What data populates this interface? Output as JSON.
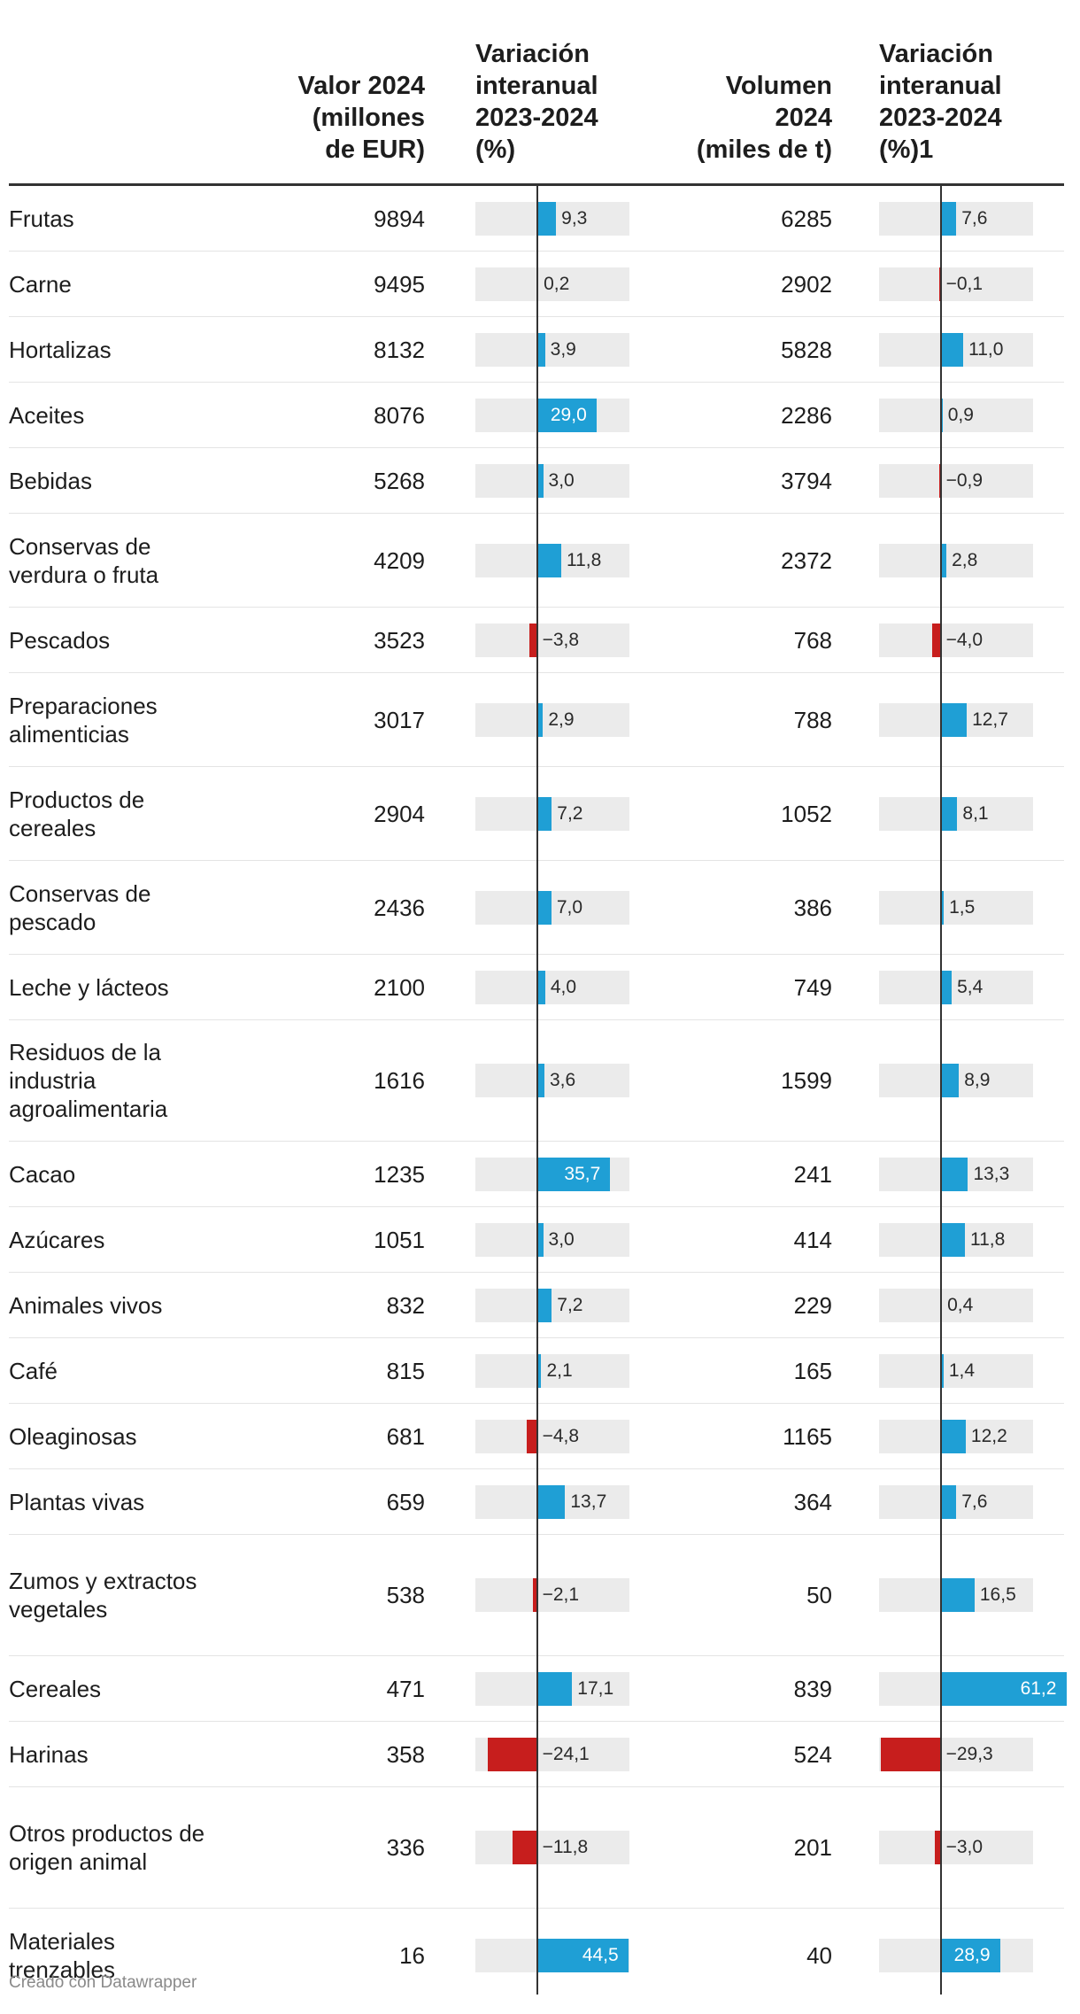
{
  "headers": {
    "valor": [
      "Valor 2024",
      "(millones",
      "de EUR)"
    ],
    "var_valor": [
      "Variación",
      "interanual",
      "2023-2024",
      "(%)"
    ],
    "volumen": [
      "Volumen",
      "2024",
      "(miles de t)"
    ],
    "var_volumen": [
      "Variación",
      "interanual",
      "2023-2024",
      "(%)1"
    ]
  },
  "colors": {
    "positive": "#1f9fd5",
    "negative": "#c71e1d",
    "track": "#ebebeb"
  },
  "chart_data": {
    "type": "table",
    "columns": [
      "Valor 2024 (millones de EUR)",
      "Variación interanual 2023-2024 (%)",
      "Volumen 2024 (miles de t)",
      "Variación interanual 2023-2024 (%)1"
    ],
    "bar_range": [
      -30,
      45
    ],
    "rows": [
      {
        "category": "Frutas",
        "valor": 9894,
        "var_valor": 9.3,
        "var_valor_label": "9,3",
        "volumen": 6285,
        "var_volumen": 7.6,
        "var_volumen_label": "7,6"
      },
      {
        "category": "Carne",
        "valor": 9495,
        "var_valor": 0.2,
        "var_valor_label": "0,2",
        "volumen": 2902,
        "var_volumen": -0.1,
        "var_volumen_label": "−0,1"
      },
      {
        "category": "Hortalizas",
        "valor": 8132,
        "var_valor": 3.9,
        "var_valor_label": "3,9",
        "volumen": 5828,
        "var_volumen": 11.0,
        "var_volumen_label": "11,0"
      },
      {
        "category": "Aceites",
        "valor": 8076,
        "var_valor": 29.0,
        "var_valor_label": "29,0",
        "volumen": 2286,
        "var_volumen": 0.9,
        "var_volumen_label": "0,9"
      },
      {
        "category": "Bebidas",
        "valor": 5268,
        "var_valor": 3.0,
        "var_valor_label": "3,0",
        "volumen": 3794,
        "var_volumen": -0.9,
        "var_volumen_label": "−0,9"
      },
      {
        "category": "Conservas de verdura o fruta",
        "valor": 4209,
        "var_valor": 11.8,
        "var_valor_label": "11,8",
        "volumen": 2372,
        "var_volumen": 2.8,
        "var_volumen_label": "2,8"
      },
      {
        "category": "Pescados",
        "valor": 3523,
        "var_valor": -3.8,
        "var_valor_label": "−3,8",
        "volumen": 768,
        "var_volumen": -4.0,
        "var_volumen_label": "−4,0"
      },
      {
        "category": "Preparaciones alimenticias",
        "valor": 3017,
        "var_valor": 2.9,
        "var_valor_label": "2,9",
        "volumen": 788,
        "var_volumen": 12.7,
        "var_volumen_label": "12,7"
      },
      {
        "category": "Productos de cereales",
        "valor": 2904,
        "var_valor": 7.2,
        "var_valor_label": "7,2",
        "volumen": 1052,
        "var_volumen": 8.1,
        "var_volumen_label": "8,1"
      },
      {
        "category": "Conservas de pescado",
        "valor": 2436,
        "var_valor": 7.0,
        "var_valor_label": "7,0",
        "volumen": 386,
        "var_volumen": 1.5,
        "var_volumen_label": "1,5"
      },
      {
        "category": "Leche y lácteos",
        "valor": 2100,
        "var_valor": 4.0,
        "var_valor_label": "4,0",
        "volumen": 749,
        "var_volumen": 5.4,
        "var_volumen_label": "5,4"
      },
      {
        "category": "Residuos de la industria agroalimentaria",
        "valor": 1616,
        "var_valor": 3.6,
        "var_valor_label": "3,6",
        "volumen": 1599,
        "var_volumen": 8.9,
        "var_volumen_label": "8,9"
      },
      {
        "category": "Cacao",
        "valor": 1235,
        "var_valor": 35.7,
        "var_valor_label": "35,7",
        "volumen": 241,
        "var_volumen": 13.3,
        "var_volumen_label": "13,3"
      },
      {
        "category": "Azúcares",
        "valor": 1051,
        "var_valor": 3.0,
        "var_valor_label": "3,0",
        "volumen": 414,
        "var_volumen": 11.8,
        "var_volumen_label": "11,8"
      },
      {
        "category": "Animales vivos",
        "valor": 832,
        "var_valor": 7.2,
        "var_valor_label": "7,2",
        "volumen": 229,
        "var_volumen": 0.4,
        "var_volumen_label": "0,4"
      },
      {
        "category": "Café",
        "valor": 815,
        "var_valor": 2.1,
        "var_valor_label": "2,1",
        "volumen": 165,
        "var_volumen": 1.4,
        "var_volumen_label": "1,4"
      },
      {
        "category": "Oleaginosas",
        "valor": 681,
        "var_valor": -4.8,
        "var_valor_label": "−4,8",
        "volumen": 1165,
        "var_volumen": 12.2,
        "var_volumen_label": "12,2"
      },
      {
        "category": "Plantas vivas",
        "valor": 659,
        "var_valor": 13.7,
        "var_valor_label": "13,7",
        "volumen": 364,
        "var_volumen": 7.6,
        "var_volumen_label": "7,6"
      },
      {
        "category": "Zumos y extractos vegetales",
        "valor": 538,
        "var_valor": -2.1,
        "var_valor_label": "−2,1",
        "volumen": 50,
        "var_volumen": 16.5,
        "var_volumen_label": "16,5"
      },
      {
        "category": "Cereales",
        "valor": 471,
        "var_valor": 17.1,
        "var_valor_label": "17,1",
        "volumen": 839,
        "var_volumen": 61.2,
        "var_volumen_label": "61,2"
      },
      {
        "category": "Harinas",
        "valor": 358,
        "var_valor": -24.1,
        "var_valor_label": "−24,1",
        "volumen": 524,
        "var_volumen": -29.3,
        "var_volumen_label": "−29,3"
      },
      {
        "category": "Otros productos de origen animal",
        "valor": 336,
        "var_valor": -11.8,
        "var_valor_label": "−11,8",
        "volumen": 201,
        "var_volumen": -3.0,
        "var_volumen_label": "−3,0"
      },
      {
        "category": "Materiales trenzables",
        "valor": 16,
        "var_valor": 44.5,
        "var_valor_label": "44,5",
        "volumen": 40,
        "var_volumen": 28.9,
        "var_volumen_label": "28,9"
      }
    ]
  },
  "footer": "Creado con Datawrapper"
}
